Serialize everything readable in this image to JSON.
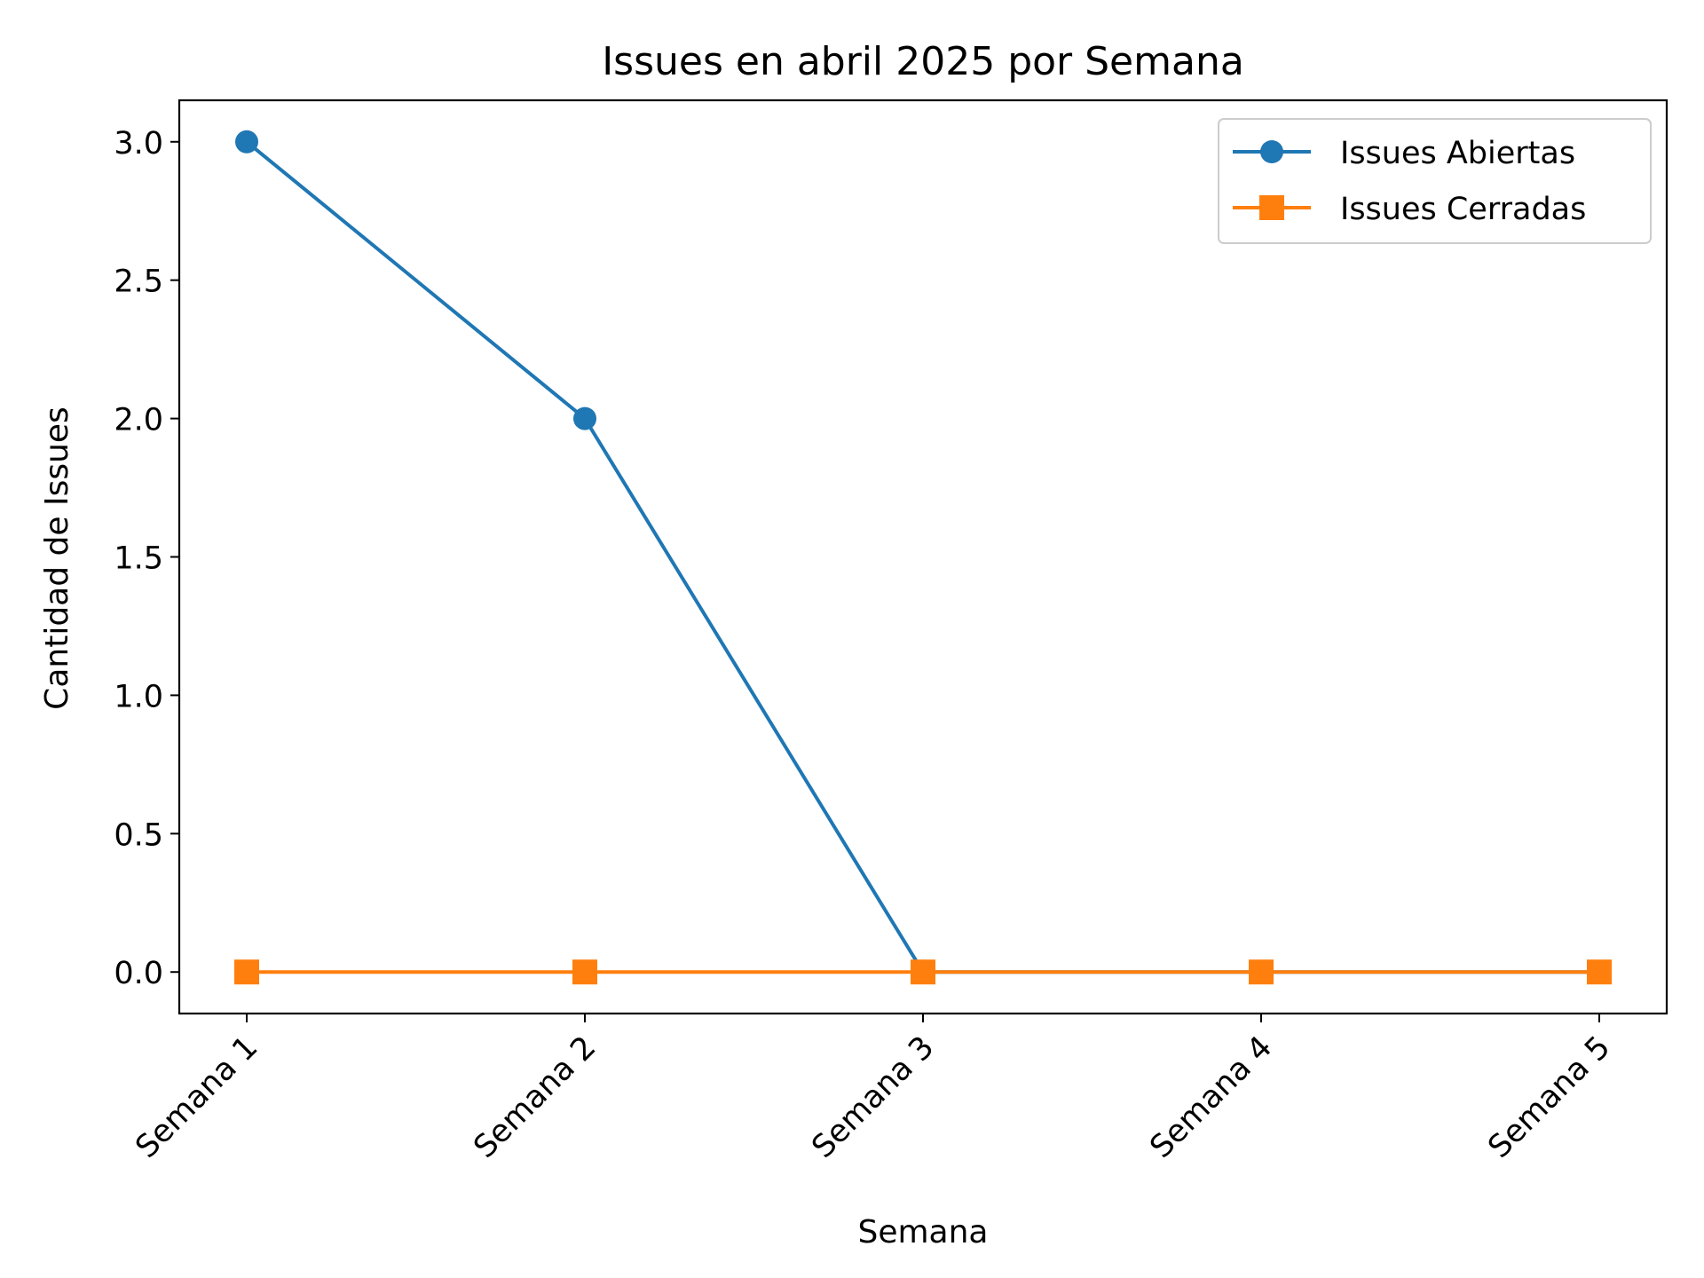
{
  "chart_data": {
    "type": "line",
    "title": "Issues en abril 2025 por Semana",
    "xlabel": "Semana",
    "ylabel": "Cantidad de Issues",
    "categories": [
      "Semana 1",
      "Semana 2",
      "Semana 3",
      "Semana 4",
      "Semana 5"
    ],
    "ylim": [
      -0.15,
      3.15
    ],
    "yticks": [
      "0.0",
      "0.5",
      "1.0",
      "1.5",
      "2.0",
      "2.5",
      "3.0"
    ],
    "grid": false,
    "legend_position": "top-right",
    "series": [
      {
        "name": "Issues Abiertas",
        "values": [
          3,
          2,
          0,
          0,
          0
        ],
        "color": "#1f77b4",
        "marker": "circle"
      },
      {
        "name": "Issues Cerradas",
        "values": [
          0,
          0,
          0,
          0,
          0
        ],
        "color": "#ff7f0e",
        "marker": "square"
      }
    ]
  }
}
